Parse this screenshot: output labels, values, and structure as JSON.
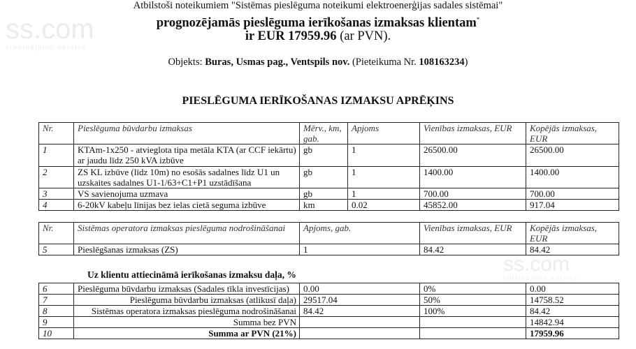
{
  "watermark": {
    "logo": "ss.com",
    "tagline": "sludinājumu serviss"
  },
  "header": {
    "intro": "Atbilstoši noteikumiem \"Sistēmas pieslēguma noteikumi elektroenerģijas sadales sistēmai\"",
    "headline": "prognozējamās pieslēguma ierīkošanas izmaksas klientam",
    "footnote_mark": "*",
    "amount_prefix": "ir EUR 17959.96",
    "amount_suffix": "(ar PVN).",
    "object_label": "Objekts:",
    "object_value": "Buras, Usmas pag., Ventspils nov.",
    "application_label": "(Pieteikuma Nr.",
    "application_number": "108163234",
    "application_close": ")"
  },
  "title": "PIESLĒGUMA IERĪKOŠANAS IZMAKSU APRĒĶINS",
  "table1": {
    "headers": [
      "Nr.",
      "Pieslēguma būvdarbu izmaksas",
      "Mērv., km, gab.",
      "Apjoms",
      "Vienības izmaksas, EUR",
      "Kopējās izmaksas, EUR"
    ],
    "rows": [
      [
        "1",
        "KTAm-1x250 - atvieglota tipa metāla KTA (ar CCF iekārtu) ar jaudu līdz 250 kVA izbūve",
        "gb",
        "1",
        "26500.00",
        "26500.00"
      ],
      [
        "2",
        "ZS KL izbūve (līdz 10m) no esošās sadalnes līdz U1 un uzskaites sadalnes U1-1/63+C1+P1 uzstādīšana",
        "gb",
        "1",
        "1400.00",
        "1400.00"
      ],
      [
        "3",
        "VS savienojuma uzmava",
        "gb",
        "1",
        "700.00",
        "700.00"
      ],
      [
        "4",
        "6-20kV kabeļu līnijas bez ielas cietā seguma izbūve",
        "km",
        "0.02",
        "45852.00",
        "917.04"
      ]
    ]
  },
  "table2": {
    "headers": [
      "Nr.",
      "Sistēmas operatora izmaksas pieslēguma nodrošināšanai",
      "Apjoms, gab.",
      "Vienības izmaksas, EUR",
      "Kopējās izmaksas, EUR"
    ],
    "rows": [
      [
        "5",
        "Pieslēgšanas izmaksas (ZS)",
        "1",
        "84.42",
        "84.42"
      ]
    ]
  },
  "table3": {
    "caption": "Uz klientu attiecināmā ierīkošanas izmaksu daļa, %",
    "rows": [
      [
        "6",
        "Pieslēguma būvdarbu izmaksas (Sadales tīkla investīcijas)",
        "0.00",
        "0%",
        "0.00"
      ],
      [
        "7",
        "Pieslēguma būvdarbu izmaksas (atlikusī daļa)",
        "29517.04",
        "50%",
        "14758.52"
      ],
      [
        "8",
        "Sistēmas operatora izmaksas pieslēguma nodrošināšanai",
        "84.42",
        "100%",
        "84.42"
      ],
      [
        "9",
        "Summa bez PVN",
        "",
        "",
        "14842.94"
      ],
      [
        "10",
        "Summa ar PVN (21%)",
        "",
        "",
        "17959.96"
      ]
    ]
  }
}
